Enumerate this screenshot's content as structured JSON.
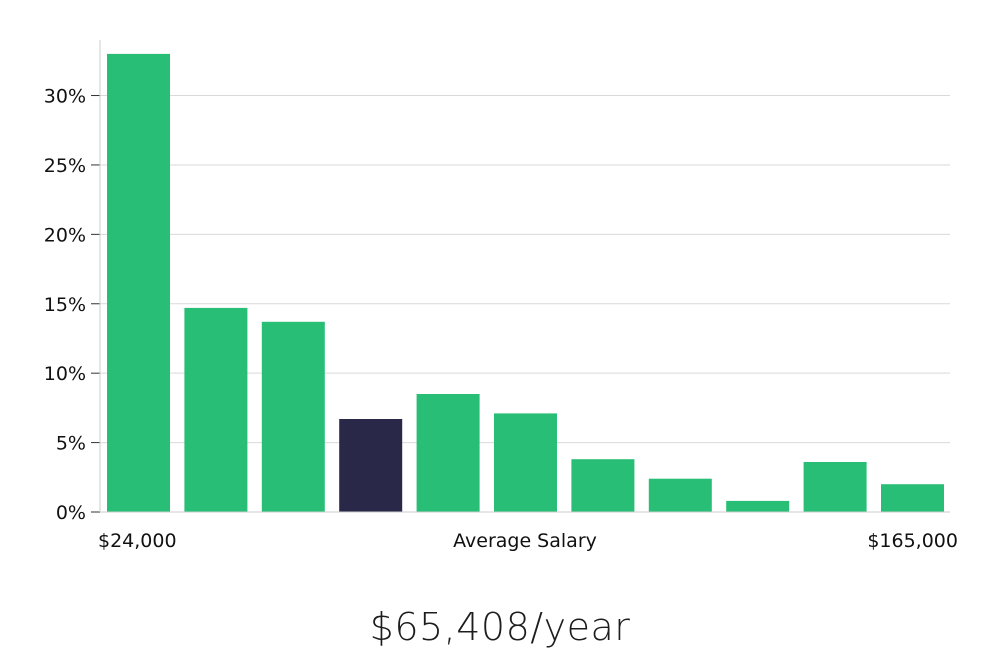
{
  "chart_data": {
    "type": "bar",
    "values": [
      33.0,
      14.7,
      13.7,
      6.7,
      8.5,
      7.1,
      3.8,
      2.4,
      0.8,
      3.6,
      2.0
    ],
    "highlight_index": 3,
    "colors": {
      "bar": "#29be76",
      "highlight": "#2a2848",
      "grid": "#d9d9d9",
      "axis": "#cccccc"
    },
    "ylim": [
      0,
      34
    ],
    "yticks": [
      0,
      5,
      10,
      15,
      20,
      25,
      30
    ],
    "ytick_labels": [
      "0%",
      "5%",
      "10%",
      "15%",
      "20%",
      "25%",
      "30%"
    ],
    "xlabel": "Average Salary",
    "x_min_label": "$24,000",
    "x_max_label": "$165,000",
    "grid": "horizontal",
    "legend": "none"
  },
  "summary": {
    "salary": "$65,408/year"
  }
}
